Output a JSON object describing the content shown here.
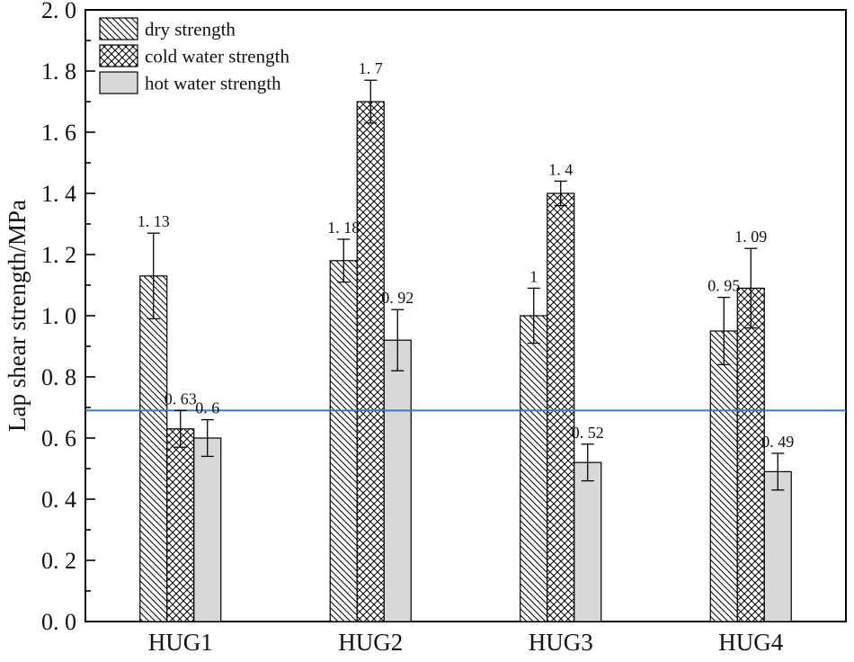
{
  "chart_data": {
    "type": "bar",
    "title": "",
    "xlabel": "",
    "ylabel": "Lap shear strength/MPa",
    "ylim": [
      0.0,
      2.0
    ],
    "ytick_step": 0.2,
    "ytick_minor_step": 0.1,
    "ytick_labels": [
      "0. 0",
      "0. 2",
      "0. 4",
      "0. 6",
      "0. 8",
      "1. 0",
      "1. 2",
      "1. 4",
      "1. 6",
      "1. 8",
      "2. 0"
    ],
    "categories": [
      "HUG1",
      "HUG2",
      "HUG3",
      "HUG4"
    ],
    "series": [
      {
        "name": "dry strength",
        "pattern": "diagonal-hatch",
        "values": [
          1.13,
          1.18,
          1.0,
          0.95
        ],
        "errors": [
          0.14,
          0.07,
          0.09,
          0.11
        ],
        "labels": [
          "1. 13",
          "1. 18",
          "1",
          "0. 95"
        ]
      },
      {
        "name": "cold water strength",
        "pattern": "crosshatch",
        "values": [
          0.63,
          1.7,
          1.4,
          1.09
        ],
        "errors": [
          0.06,
          0.07,
          0.04,
          0.13
        ],
        "labels": [
          "0. 63",
          "1. 7",
          "1. 4",
          "1. 09"
        ]
      },
      {
        "name": "hot water strength",
        "pattern": "solid-gray",
        "values": [
          0.6,
          0.92,
          0.52,
          0.49
        ],
        "errors": [
          0.06,
          0.1,
          0.06,
          0.06
        ],
        "labels": [
          "0. 6",
          "0. 92",
          "0. 52",
          "0. 49"
        ]
      }
    ],
    "reference_line": {
      "value": 0.69,
      "color": "#3a7abf"
    },
    "legend_position": "top-left",
    "grid": false,
    "colors": {
      "bar_fill_gray": "#d8d8d8",
      "hatch": "#000000",
      "axis": "#000000",
      "background": "#ffffff"
    }
  }
}
